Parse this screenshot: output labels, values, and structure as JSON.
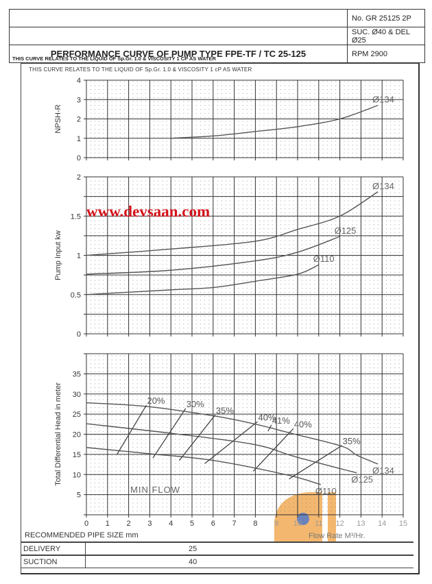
{
  "header": {
    "doc_no": "No. GR 25125 2P",
    "connections": "SUC. Ø40 & DEL Ø25",
    "title": "PERFORMANCE CURVE OF PUMP TYPE FPE-TF / TC 25-125",
    "rpm": "RPM 2900"
  },
  "note": "THIS CURVE RELATES TO THE LIQUID OF Sp.Gr. 1.0 & VISCOSITY 1 CP AS WATER",
  "chart_note": "THIS CURVE RELATES TO THE LIQUID OF Sp.Gr. 1.0 & VISCOSITY 1 cP AS WATER",
  "watermark": "www.devsaan.com",
  "pipe": {
    "caption": "RECOMMENDED PIPE SIZE mm",
    "rows": [
      {
        "label": "DELIVERY",
        "value": "25"
      },
      {
        "label": "SUCTION",
        "value": "40"
      }
    ]
  },
  "colors": {
    "curve": "#555555",
    "grid": "#333333",
    "watermark": "#d4141c",
    "logo": "#f0a040",
    "logo_dot": "#3a5aa8"
  },
  "chart_data": [
    {
      "id": "npsh",
      "type": "line",
      "ylabel": "NPSH-R",
      "xlim": [
        0,
        15
      ],
      "ylim": [
        0,
        4
      ],
      "yticks": [
        0,
        1,
        2,
        3,
        4
      ],
      "grid": true,
      "series": [
        {
          "name": "Ø134",
          "points": [
            [
              4,
              1.0
            ],
            [
              6,
              1.12
            ],
            [
              8,
              1.35
            ],
            [
              10,
              1.6
            ],
            [
              12,
              2.0
            ],
            [
              13.8,
              2.7
            ]
          ]
        }
      ]
    },
    {
      "id": "power",
      "type": "line",
      "ylabel": "Pump Input kw",
      "xlim": [
        0,
        15
      ],
      "ylim": [
        0,
        2
      ],
      "yticks": [
        0,
        0.5,
        1,
        1.5,
        2
      ],
      "grid": true,
      "series": [
        {
          "name": "Ø134",
          "points": [
            [
              0,
              1.0
            ],
            [
              4,
              1.08
            ],
            [
              8,
              1.18
            ],
            [
              10,
              1.33
            ],
            [
              12,
              1.5
            ],
            [
              13.8,
              1.81
            ]
          ]
        },
        {
          "name": "Ø125",
          "points": [
            [
              0,
              0.76
            ],
            [
              4,
              0.81
            ],
            [
              8,
              0.93
            ],
            [
              10,
              1.04
            ],
            [
              12,
              1.24
            ]
          ]
        },
        {
          "name": "Ø110",
          "points": [
            [
              0,
              0.5
            ],
            [
              4,
              0.56
            ],
            [
              6,
              0.59
            ],
            [
              8,
              0.67
            ],
            [
              10,
              0.76
            ],
            [
              11,
              0.88
            ]
          ]
        }
      ]
    },
    {
      "id": "head",
      "type": "line",
      "ylabel": "Total Differential Head in meter",
      "xlabel": "Flow Rate M³/Hr.",
      "xlim": [
        0,
        15
      ],
      "ylim": [
        0,
        40
      ],
      "xticks": [
        0,
        1,
        2,
        3,
        4,
        5,
        6,
        7,
        8,
        9,
        10,
        11,
        12,
        13,
        14,
        15
      ],
      "yticks": [
        5,
        10,
        15,
        20,
        25,
        30,
        35
      ],
      "grid": true,
      "series": [
        {
          "name": "Ø134",
          "points": [
            [
              0,
              27.8
            ],
            [
              2.84,
              26.9
            ],
            [
              6.1,
              24.5
            ],
            [
              8.0,
              22.5
            ],
            [
              9.8,
              20.1
            ],
            [
              12.1,
              17.0
            ],
            [
              12.8,
              14.8
            ],
            [
              13.8,
              12.6
            ]
          ]
        },
        {
          "name": "Ø125",
          "points": [
            [
              0,
              22.6
            ],
            [
              3.9,
              20.3
            ],
            [
              7.9,
              17.5
            ],
            [
              9.9,
              14.4
            ],
            [
              12.8,
              10.4
            ]
          ]
        },
        {
          "name": "Ø110",
          "points": [
            [
              0,
              16.7
            ],
            [
              3.1,
              15.1
            ],
            [
              6.0,
              13.5
            ],
            [
              9.5,
              9.9
            ],
            [
              11.1,
              7.5
            ]
          ]
        }
      ],
      "efficiency_lines": [
        {
          "label": "20%",
          "points": [
            [
              1.45,
              15.0
            ],
            [
              2.84,
              27.2
            ]
          ]
        },
        {
          "label": "30%",
          "points": [
            [
              3.15,
              14.1
            ],
            [
              4.7,
              26.4
            ]
          ]
        },
        {
          "label": "35%",
          "points": [
            [
              4.4,
              13.5
            ],
            [
              6.1,
              24.8
            ]
          ]
        },
        {
          "label": "40%",
          "points": [
            [
              5.6,
              12.7
            ],
            [
              8.1,
              23.1
            ]
          ]
        },
        {
          "label": "41%",
          "points": [
            [
              8.6,
              20.8
            ],
            [
              8.76,
              22.3
            ]
          ]
        },
        {
          "label": "40%",
          "points": [
            [
              7.9,
              10.8
            ],
            [
              9.8,
              21.4
            ]
          ]
        },
        {
          "label": "35%",
          "points": [
            [
              9.6,
              8.9
            ],
            [
              12.1,
              17.2
            ]
          ]
        }
      ],
      "annotation": "MIN.FLOW"
    }
  ]
}
